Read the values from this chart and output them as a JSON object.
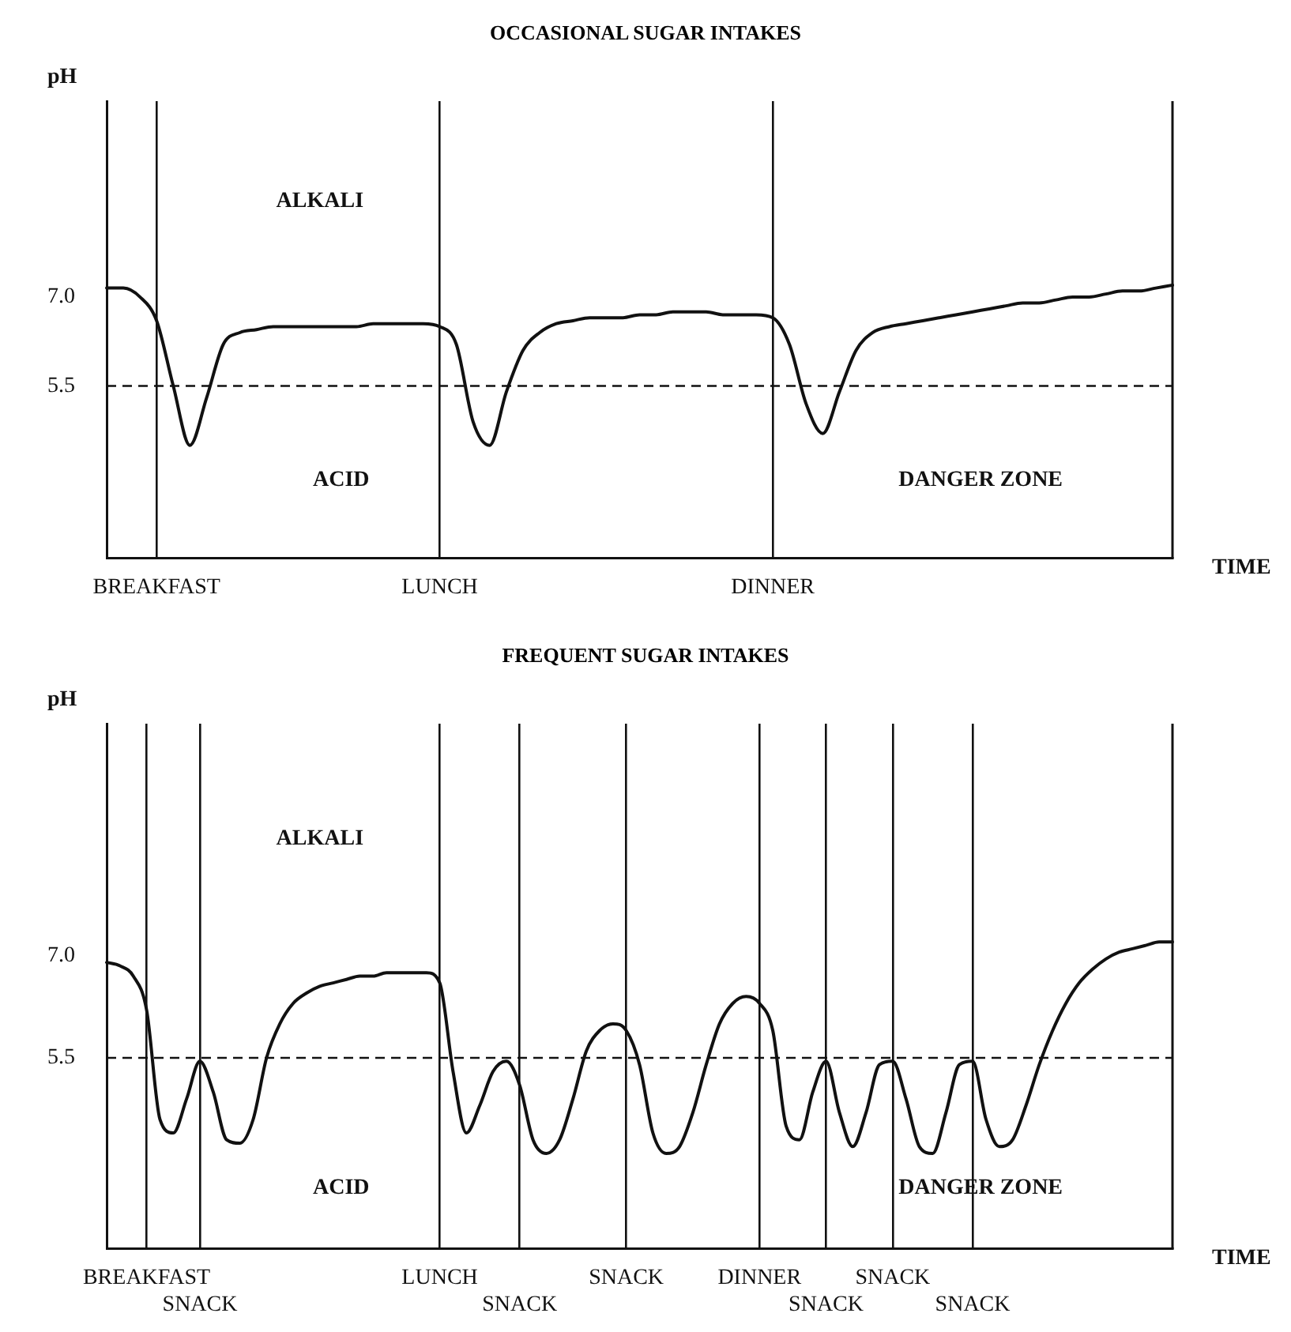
{
  "chart_data": [
    {
      "type": "line",
      "title": "OCCASIONAL SUGAR INTAKES",
      "ylabel": "pH",
      "xlabel": "TIME",
      "categories": [
        null,
        null,
        null,
        "BREAKFAST",
        null,
        null,
        null,
        null,
        null,
        null,
        null,
        null,
        null,
        null,
        null,
        null,
        null,
        null,
        null,
        null,
        "LUNCH",
        null,
        null,
        null,
        null,
        null,
        null,
        null,
        null,
        null,
        null,
        null,
        null,
        null,
        null,
        null,
        null,
        null,
        null,
        null,
        "DINNER",
        null,
        null,
        null,
        null,
        null,
        null,
        null,
        null,
        null,
        null,
        null,
        null,
        null,
        null,
        null,
        null,
        null,
        null,
        null,
        null,
        null,
        null,
        null,
        null
      ],
      "series": [
        {
          "color": "#111111",
          "values": [
            7.15,
            7.15,
            7.0,
            6.6,
            5.5,
            4.5,
            5.3,
            6.2,
            6.4,
            6.45,
            6.5,
            6.5,
            6.5,
            6.5,
            6.5,
            6.5,
            6.55,
            6.55,
            6.55,
            6.55,
            6.5,
            6.2,
            4.9,
            4.5,
            5.4,
            6.1,
            6.4,
            6.55,
            6.6,
            6.65,
            6.65,
            6.65,
            6.7,
            6.7,
            6.75,
            6.75,
            6.75,
            6.7,
            6.7,
            6.7,
            6.65,
            6.2,
            5.2,
            4.7,
            5.4,
            6.1,
            6.4,
            6.5,
            6.55,
            6.6,
            6.65,
            6.7,
            6.75,
            6.8,
            6.85,
            6.9,
            6.9,
            6.95,
            7.0,
            7.0,
            7.05,
            7.1,
            7.1,
            7.15,
            7.2
          ]
        }
      ],
      "ylim": [
        2.6,
        10.3
      ],
      "yticks": [
        {
          "value": 7,
          "label": "7.0"
        },
        5.5
      ],
      "ref_lines": [
        {
          "axis": "y",
          "value": 5.5,
          "line_style": "dashed",
          "color": "#111111"
        }
      ],
      "annotations": [
        "ALKALI",
        "ACID",
        "DANGER ZONE"
      ],
      "grid": "x",
      "marker": "none",
      "line_style": "solid"
    },
    {
      "type": "line",
      "title": "FREQUENT SUGAR INTAKES",
      "ylabel": "pH",
      "xlabel": "TIME",
      "categories": [
        null,
        null,
        null,
        "BREAKFAST",
        null,
        null,
        null,
        "SNACK",
        null,
        null,
        null,
        null,
        null,
        null,
        null,
        null,
        null,
        null,
        null,
        null,
        null,
        null,
        null,
        null,
        null,
        "LUNCH",
        null,
        null,
        null,
        null,
        null,
        "SNACK",
        null,
        null,
        null,
        null,
        null,
        null,
        null,
        "SNACK",
        null,
        null,
        null,
        null,
        null,
        null,
        null,
        null,
        null,
        "DINNER",
        null,
        null,
        null,
        null,
        "SNACK",
        null,
        null,
        null,
        null,
        "SNACK",
        null,
        null,
        null,
        null,
        null,
        "SNACK",
        null,
        null,
        null,
        null,
        null,
        null,
        null,
        null,
        null,
        null,
        null,
        null,
        null,
        null,
        null
      ],
      "series": [
        {
          "color": "#111111",
          "values": [
            6.9,
            6.85,
            6.7,
            6.2,
            4.6,
            4.4,
            4.9,
            5.45,
            5.0,
            4.3,
            4.25,
            4.6,
            5.5,
            6.0,
            6.3,
            6.45,
            6.55,
            6.6,
            6.65,
            6.7,
            6.7,
            6.75,
            6.75,
            6.75,
            6.75,
            6.6,
            5.3,
            4.4,
            4.8,
            5.3,
            5.45,
            5.1,
            4.3,
            4.1,
            4.3,
            4.9,
            5.6,
            5.9,
            6.0,
            5.9,
            5.4,
            4.4,
            4.1,
            4.2,
            4.7,
            5.4,
            6.0,
            6.3,
            6.4,
            6.3,
            5.9,
            4.5,
            4.3,
            5.0,
            5.45,
            4.7,
            4.2,
            4.7,
            5.4,
            5.45,
            4.9,
            4.2,
            4.1,
            4.7,
            5.4,
            5.45,
            4.6,
            4.2,
            4.3,
            4.8,
            5.4,
            5.9,
            6.3,
            6.6,
            6.8,
            6.95,
            7.05,
            7.1,
            7.15,
            7.2,
            7.2
          ]
        }
      ],
      "ylim": [
        2.7,
        10.4
      ],
      "yticks": [
        {
          "value": 7,
          "label": "7.0"
        },
        5.5
      ],
      "ref_lines": [
        {
          "axis": "y",
          "value": 5.5,
          "line_style": "dashed",
          "color": "#111111"
        }
      ],
      "annotations": [
        "ALKALI",
        "ACID",
        "DANGER ZONE"
      ],
      "grid": "x",
      "marker": "none",
      "line_style": "solid"
    }
  ]
}
